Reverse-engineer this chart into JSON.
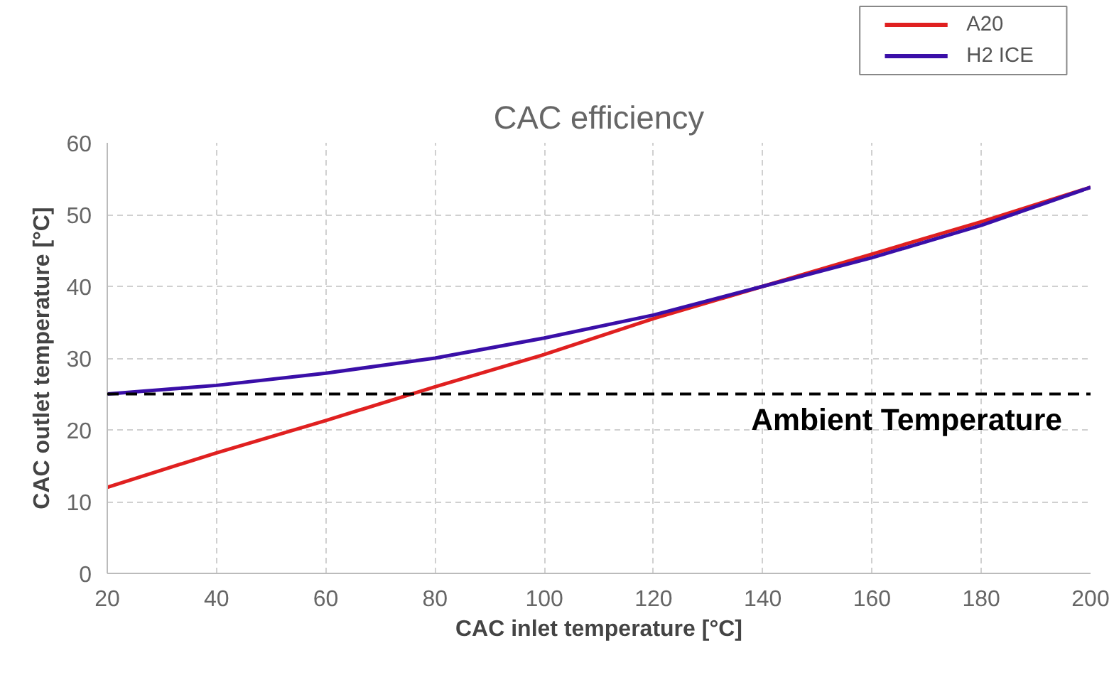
{
  "chart_data": {
    "type": "line",
    "title": "CAC efficiency",
    "xlabel": "CAC inlet temperature [°C]",
    "ylabel": "CAC outlet temperature [°C]",
    "x": [
      20,
      40,
      60,
      80,
      100,
      120,
      140,
      160,
      180,
      200
    ],
    "series": [
      {
        "name": "A20",
        "color": "#e02020",
        "values": [
          12,
          16.8,
          21.3,
          26,
          30.5,
          35.5,
          40,
          44.5,
          49,
          53.8
        ]
      },
      {
        "name": "H2 ICE",
        "color": "#3a0fa8",
        "values": [
          25,
          26.2,
          27.9,
          30,
          32.8,
          36,
          40,
          44,
          48.5,
          53.8
        ]
      }
    ],
    "xlim": [
      20,
      200
    ],
    "xticks": [
      20,
      40,
      60,
      80,
      100,
      120,
      140,
      160,
      180,
      200
    ],
    "ylim": [
      0,
      60
    ],
    "yticks": [
      0,
      10,
      20,
      30,
      40,
      50,
      60
    ],
    "ref_lines": [
      {
        "axis": "y",
        "value": 25,
        "label": "Ambient Temperature",
        "color": "#000000",
        "line_style": "dashed"
      }
    ],
    "grid": true,
    "legend": "top right",
    "marker": "none",
    "line_style": "solid"
  }
}
